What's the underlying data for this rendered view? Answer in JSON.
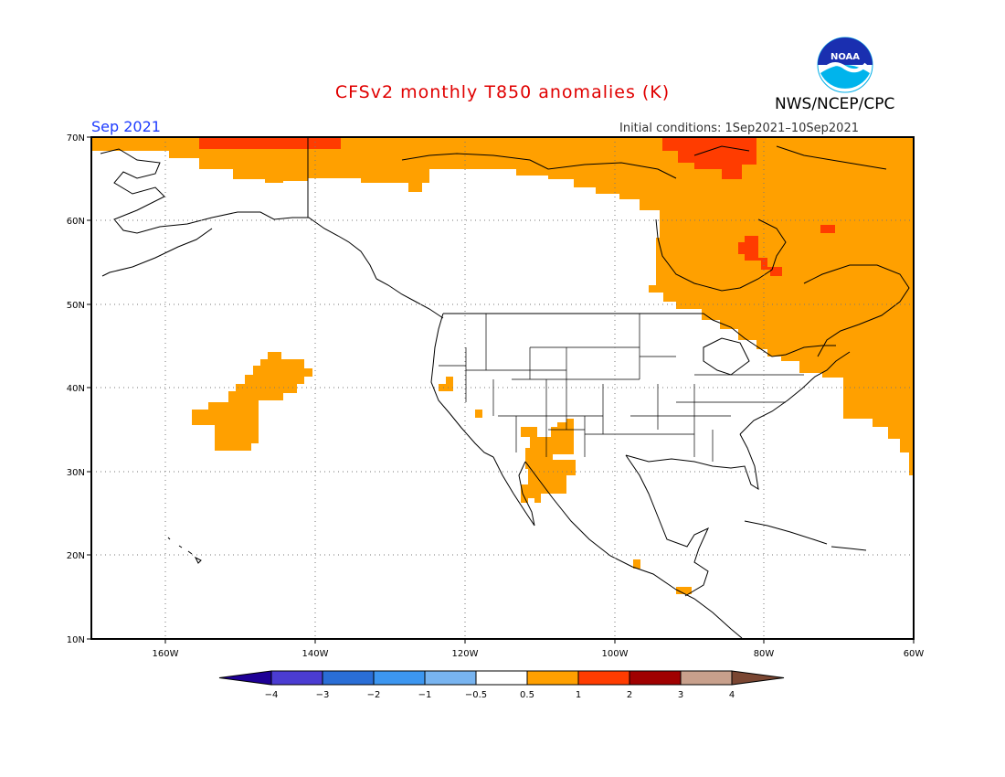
{
  "header": {
    "title": "CFSv2 monthly T850 anomalies (K)",
    "month": "Sep 2021",
    "initial_conditions": "Initial conditions: 1Sep2021–10Sep2021",
    "agency": "NWS/NCEP/CPC",
    "logo_text": "NOAA"
  },
  "map": {
    "lon_range": [
      -170,
      -60
    ],
    "lat_range": [
      10,
      70
    ],
    "lat_ticks": [
      "70N",
      "60N",
      "50N",
      "40N",
      "30N",
      "20N",
      "10N"
    ],
    "lon_ticks": [
      "160W",
      "140W",
      "120W",
      "100W",
      "80W",
      "60W"
    ],
    "grid": "dotted"
  },
  "legend": {
    "labels": [
      "−4",
      "−3",
      "−2",
      "−1",
      "−0.5",
      "0.5",
      "1",
      "2",
      "3",
      "4"
    ],
    "colors": [
      "#1e0096",
      "#4b3cd2",
      "#2a6ed6",
      "#3c96f0",
      "#78b4f0",
      "#ffffff",
      "#ffa000",
      "#ff3c00",
      "#a00000",
      "#c8a08c",
      "#7a4632"
    ]
  },
  "anomaly_colors": {
    "0.5-1": "#ffa000",
    "1-2": "#ff3c00"
  }
}
